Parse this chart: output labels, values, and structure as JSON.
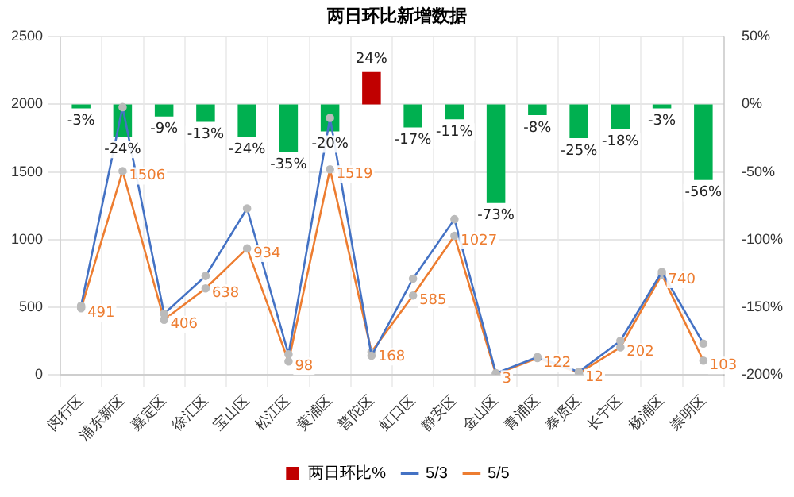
{
  "chart_data": {
    "type": "bar",
    "title": "两日环比新增数据",
    "categories": [
      "闵行区",
      "浦东新区",
      "嘉定区",
      "徐汇区",
      "宝山区",
      "松江区",
      "黄浦区",
      "普陀区",
      "虹口区",
      "静安区",
      "金山区",
      "青浦区",
      "奉贤区",
      "长宁区",
      "杨浦区",
      "崇明区"
    ],
    "series": [
      {
        "name": "两日环比%",
        "type": "bar",
        "axis": "y2",
        "color": "#c00000",
        "colors": [
          "#00b050",
          "#00b050",
          "#00b050",
          "#00b050",
          "#00b050",
          "#00b050",
          "#00b050",
          "#c00000",
          "#00b050",
          "#00b050",
          "#00b050",
          "#00b050",
          "#00b050",
          "#00b050",
          "#00b050",
          "#00b050"
        ],
        "values": [
          -3,
          -24,
          -9,
          -13,
          -24,
          -35,
          -20,
          24,
          -17,
          -11,
          -73,
          -8,
          -25,
          -18,
          -3,
          -56
        ],
        "value_labels": [
          "-3%",
          "-24%",
          "-9%",
          "-13%",
          "-24%",
          "-35%",
          "-20%",
          "24%",
          "-17%",
          "-11%",
          "-73%",
          "-8%",
          "-25%",
          "-18%",
          "-3%",
          "-56%"
        ]
      },
      {
        "name": "5/3",
        "type": "line",
        "color": "#4472c4",
        "values": [
          510,
          1980,
          450,
          730,
          1230,
          150,
          1900,
          140,
          710,
          1150,
          10,
          130,
          20,
          250,
          760,
          230
        ]
      },
      {
        "name": "5/5",
        "type": "line",
        "color": "#ed7d31",
        "values": [
          491,
          1506,
          406,
          638,
          934,
          98,
          1519,
          168,
          585,
          1027,
          3,
          122,
          12,
          202,
          740,
          103
        ],
        "value_labels": [
          "491",
          "1506",
          "406",
          "638",
          "934",
          "98",
          "1519",
          "168",
          "585",
          "1027",
          "3",
          "122",
          "12",
          "202",
          "740",
          "103"
        ]
      }
    ],
    "ylim": [
      0,
      2500
    ],
    "yticks": [
      0,
      500,
      1000,
      1500,
      2000,
      2500
    ],
    "y2lim": [
      -200,
      50
    ],
    "y2ticks": [
      {
        "value": -200,
        "label": "-200%"
      },
      {
        "value": -150,
        "label": "-150%"
      },
      {
        "value": -100,
        "label": "-100%"
      },
      {
        "value": -50,
        "label": "-50%"
      },
      {
        "value": 0,
        "label": "0%"
      },
      {
        "value": 50,
        "label": "50%"
      }
    ],
    "grid": true,
    "legend": "bottom",
    "marker": "circle",
    "line_style": "solid"
  }
}
